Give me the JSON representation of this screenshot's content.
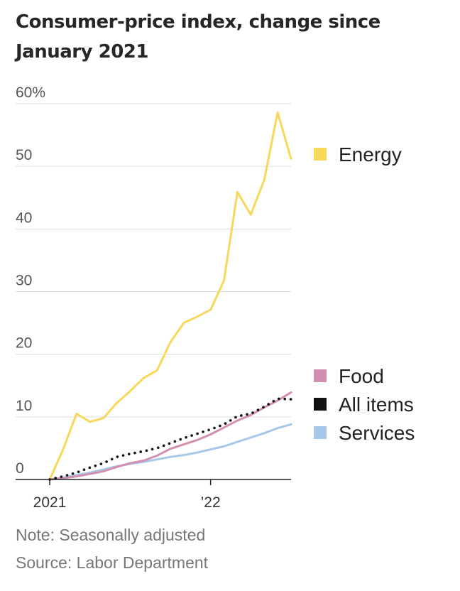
{
  "chart_data": {
    "type": "line",
    "title": "Consumer-price index, change since January 2021",
    "ylim": [
      0,
      60
    ],
    "y_ticks": [
      {
        "value": 0,
        "label": "0"
      },
      {
        "value": 10,
        "label": "10"
      },
      {
        "value": 20,
        "label": "20"
      },
      {
        "value": 30,
        "label": "30"
      },
      {
        "value": 40,
        "label": "40"
      },
      {
        "value": 50,
        "label": "50"
      },
      {
        "value": 60,
        "label": "60%"
      }
    ],
    "x": [
      "2021-01",
      "2021-02",
      "2021-03",
      "2021-04",
      "2021-05",
      "2021-06",
      "2021-07",
      "2021-08",
      "2021-09",
      "2021-10",
      "2021-11",
      "2021-12",
      "2022-01",
      "2022-02",
      "2022-03",
      "2022-04",
      "2022-05",
      "2022-06",
      "2022-07"
    ],
    "x_ticks": [
      {
        "value": "2021-01",
        "label": "2021"
      },
      {
        "value": "2022-01",
        "label": "’22"
      }
    ],
    "grid": true,
    "legend": "right",
    "series": [
      {
        "name": "Energy",
        "color": "#f8d85a",
        "style": "solid",
        "values": [
          0,
          4.8,
          10.5,
          9.2,
          9.8,
          12.2,
          14.1,
          16.2,
          17.4,
          21.9,
          25,
          26,
          27.1,
          31.8,
          45.9,
          42.3,
          47.8,
          58.6,
          51.2
        ]
      },
      {
        "name": "Food",
        "color": "#d28fb0",
        "style": "solid",
        "values": [
          0,
          0.2,
          0.5,
          0.9,
          1.3,
          2.0,
          2.6,
          3.0,
          3.8,
          4.9,
          5.6,
          6.3,
          7.2,
          8.3,
          9.4,
          10.3,
          11.5,
          12.6,
          13.9
        ]
      },
      {
        "name": "All items",
        "color": "#111111",
        "style": "dotted",
        "values": [
          0,
          0.5,
          1.1,
          1.9,
          2.6,
          3.6,
          4.1,
          4.5,
          5.0,
          5.8,
          6.6,
          7.3,
          8.0,
          8.8,
          10.1,
          10.5,
          11.6,
          12.9,
          12.8
        ]
      },
      {
        "name": "Services",
        "color": "#a6c8e8",
        "style": "solid",
        "values": [
          0,
          0.3,
          0.7,
          1.1,
          1.6,
          2.1,
          2.5,
          2.8,
          3.2,
          3.6,
          3.9,
          4.3,
          4.8,
          5.3,
          6.0,
          6.7,
          7.4,
          8.2,
          8.8
        ]
      }
    ]
  },
  "footer": {
    "note": "Note: Seasonally adjusted",
    "source": "Source: Labor Department"
  }
}
